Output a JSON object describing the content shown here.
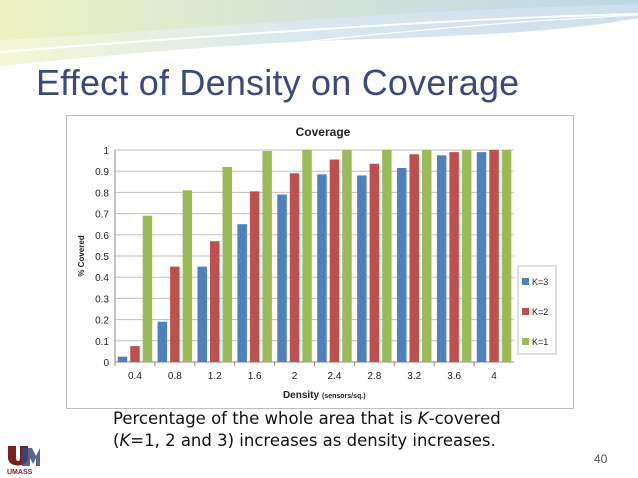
{
  "slide": {
    "title": "Effect of Density on Coverage",
    "caption_part1": "Percentage of the whole area that is ",
    "caption_italic1": "K",
    "caption_part2": "-covered",
    "caption_part3": "(",
    "caption_italic2": "K",
    "caption_part4": "=1, 2 and 3) increases as density increases.",
    "page_number": "40",
    "logo_text": "UMASS"
  },
  "colors": {
    "k3": "#4f81bd",
    "k2": "#c0504d",
    "k1": "#9bbb59",
    "title": "#3b4a7a"
  },
  "chart_data": {
    "type": "bar",
    "title": "Coverage",
    "xlabel": "Density",
    "xlabel_sub": "(sensors/sq.)",
    "ylabel": "% Covered",
    "ylim": [
      0,
      1
    ],
    "yticks": [
      "0",
      "0.1",
      "0.2",
      "0.3",
      "0.4",
      "0.5",
      "0.6",
      "0.7",
      "0.8",
      "0.9",
      "1"
    ],
    "categories": [
      "0.4",
      "0.8",
      "1.2",
      "1.6",
      "2",
      "2.4",
      "2.8",
      "3.2",
      "3.6",
      "4"
    ],
    "series": [
      {
        "name": "K=3",
        "color": "#4f81bd",
        "values": [
          0.025,
          0.19,
          0.45,
          0.65,
          0.79,
          0.885,
          0.88,
          0.915,
          0.975,
          0.99
        ]
      },
      {
        "name": "K=2",
        "color": "#c0504d",
        "values": [
          0.075,
          0.45,
          0.57,
          0.805,
          0.89,
          0.955,
          0.935,
          0.98,
          0.99,
          1.0
        ]
      },
      {
        "name": "K=1",
        "color": "#9bbb59",
        "values": [
          0.69,
          0.81,
          0.92,
          0.995,
          1.0,
          1.0,
          1.0,
          1.0,
          1.0,
          1.0
        ]
      }
    ],
    "legend": {
      "position": "right",
      "entries": [
        "K=3",
        "K=2",
        "K=1"
      ]
    },
    "grid": true
  }
}
